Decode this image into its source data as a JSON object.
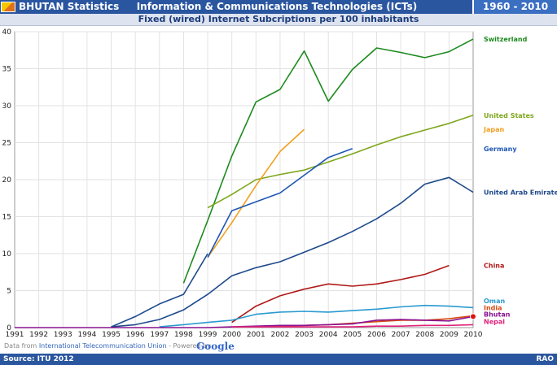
{
  "header": {
    "app_title": "BHUTAN Statistics",
    "main_title": "Information & Communications Technologies (ICTs)",
    "years": "1960 - 2010",
    "subtitle": "Fixed (wired) Internet Subcriptions per 100 inhabitants"
  },
  "footer": {
    "source": "Source: ITU 2012",
    "rao": "RAO"
  },
  "attribution": {
    "prefix": "Data from ",
    "link": "International Telecommunication Union",
    "powered": " - Powered by ",
    "google": "Google"
  },
  "chart_data": {
    "type": "line",
    "x": [
      1991,
      1992,
      1993,
      1994,
      1995,
      1996,
      1997,
      1998,
      1999,
      2000,
      2001,
      2002,
      2003,
      2004,
      2005,
      2006,
      2007,
      2008,
      2009,
      2010
    ],
    "xlim": [
      1991,
      2010
    ],
    "ylim": [
      0,
      40
    ],
    "yticks": [
      0,
      5,
      10,
      15,
      20,
      25,
      30,
      35,
      40
    ],
    "grid": true,
    "series": [
      {
        "name": "Switzerland",
        "color": "#1e8a1e",
        "values": [
          null,
          null,
          null,
          null,
          null,
          null,
          null,
          6.0,
          14.5,
          23.2,
          30.5,
          32.2,
          37.4,
          30.6,
          34.9,
          37.8,
          37.2,
          36.5,
          37.3,
          39.0
        ]
      },
      {
        "name": "United States",
        "color": "#7ea61c",
        "values": [
          null,
          null,
          null,
          null,
          null,
          null,
          null,
          null,
          16.2,
          18.0,
          20.0,
          20.7,
          21.3,
          22.4,
          23.5,
          24.7,
          25.8,
          26.7,
          27.6,
          28.7
        ]
      },
      {
        "name": "Japan",
        "color": "#f0a020",
        "values": [
          null,
          null,
          null,
          null,
          null,
          null,
          null,
          null,
          9.5,
          14.2,
          19.2,
          23.8,
          26.8,
          null,
          null,
          null,
          null,
          null,
          null,
          null
        ]
      },
      {
        "name": "Germany",
        "color": "#1f57b4",
        "values": [
          null,
          null,
          null,
          null,
          null,
          null,
          null,
          null,
          9.5,
          15.8,
          17.0,
          18.2,
          20.6,
          23.0,
          24.2,
          null,
          null,
          null,
          null,
          null
        ]
      },
      {
        "name": "United Arab Emirates",
        "color": "#1e4a8c",
        "values": [
          null,
          null,
          null,
          null,
          0.1,
          1.5,
          3.2,
          4.5,
          10.0,
          null,
          null,
          null,
          null,
          null,
          null,
          null,
          null,
          null,
          null,
          null
        ]
      },
      {
        "name": "United Arab Emirates",
        "color": "#1e4a8c",
        "values": [
          null,
          null,
          null,
          null,
          0.1,
          0.4,
          1.1,
          2.4,
          4.5,
          7.0,
          8.1,
          8.9,
          10.2,
          11.5,
          13.0,
          14.7,
          16.8,
          19.4,
          20.3,
          18.3
        ]
      },
      {
        "name": "China",
        "color": "#b01818",
        "values": [
          null,
          null,
          null,
          null,
          null,
          null,
          null,
          null,
          null,
          0.7,
          2.9,
          4.3,
          5.2,
          5.9,
          5.6,
          5.9,
          6.5,
          7.2,
          8.4,
          null
        ]
      },
      {
        "name": "Oman",
        "color": "#2a9ad0",
        "values": [
          null,
          null,
          null,
          null,
          null,
          null,
          0.1,
          0.4,
          0.7,
          1.0,
          1.8,
          2.1,
          2.2,
          2.1,
          2.3,
          2.5,
          2.8,
          3.0,
          2.9,
          2.7
        ]
      },
      {
        "name": "India",
        "color": "#d84a10",
        "values": [
          null,
          null,
          null,
          null,
          null,
          null,
          null,
          null,
          null,
          null,
          0.1,
          0.2,
          0.3,
          0.4,
          0.6,
          0.8,
          1.0,
          1.0,
          1.2,
          1.6
        ]
      },
      {
        "name": "Bhutan",
        "color": "#8a1090",
        "values": [
          0,
          0,
          0,
          0,
          0,
          0,
          0,
          0,
          0,
          0.1,
          0.2,
          0.3,
          0.3,
          0.4,
          0.5,
          1.0,
          1.1,
          1.0,
          0.9,
          1.5
        ]
      },
      {
        "name": "Nepal",
        "color": "#e0207a",
        "values": [
          null,
          null,
          null,
          null,
          null,
          null,
          null,
          null,
          null,
          0.1,
          0.1,
          0.1,
          0.1,
          0.1,
          0.1,
          0.2,
          0.2,
          0.3,
          0.3,
          0.4
        ]
      }
    ],
    "labels": [
      {
        "name": "Switzerland",
        "color": "#1e8a1e",
        "y": 39.0
      },
      {
        "name": "United States",
        "color": "#7ea61c",
        "y": 28.7
      },
      {
        "name": "Japan",
        "color": "#f0a020",
        "y": 26.8
      },
      {
        "name": "Germany",
        "color": "#1f57b4",
        "y": 24.2
      },
      {
        "name": "United Arab Emirates",
        "color": "#1e4a8c",
        "y": 18.3
      },
      {
        "name": "China",
        "color": "#b01818",
        "y": 8.4
      },
      {
        "name": "Oman",
        "color": "#2a9ad0",
        "y": 3.6
      },
      {
        "name": "India",
        "color": "#d84a10",
        "y": 2.7
      },
      {
        "name": "Bhutan",
        "color": "#8a1090",
        "y": 1.8
      },
      {
        "name": "Nepal",
        "color": "#e0207a",
        "y": 0.8
      }
    ],
    "highlight": {
      "series": "Bhutan",
      "x": 2010,
      "y": 1.5,
      "color": "#e01010"
    }
  }
}
